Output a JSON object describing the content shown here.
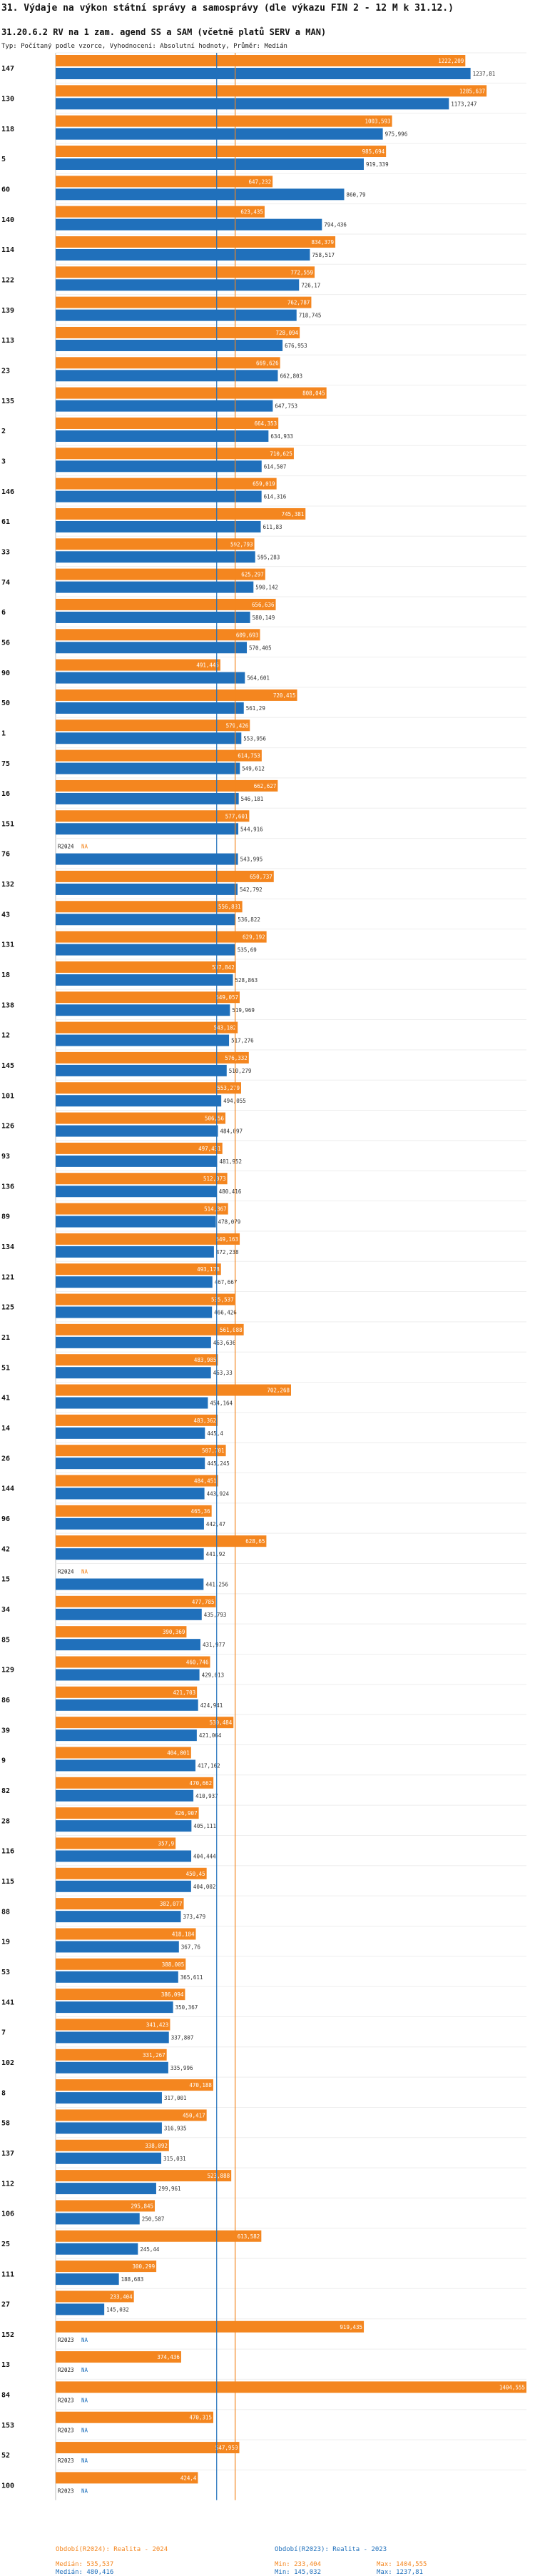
{
  "title": "31. Výdaje na výkon státní správy a samosprávy (dle výkazu FIN 2 - 12 M k 31.12.)",
  "subtitle": "31.20.6.2 RV na 1 zam. agend SS a SAM (včetně platů SERV a MAN)",
  "type_line": "Typ: Počítaný podle vzorce, Vyhodnocení: Absolutní hodnoty, Průměr: Medián",
  "colors": {
    "r2024": "#f4861f",
    "r2023": "#2070bb"
  },
  "legend": {
    "r2024": {
      "label": "Období(R2024): Realita - 2024",
      "median": "Medián: 535,537",
      "min": "Min: 233,404",
      "max": "Max: 1404,555"
    },
    "r2023": {
      "label": "Období(R2023): Realita - 2023",
      "median": "Medián: 480,416",
      "min": "Min: 145,032",
      "max": "Max: 1237,81"
    }
  },
  "chart_data": {
    "type": "bar",
    "orientation": "horizontal",
    "series_names": [
      "R2024",
      "R2023"
    ],
    "xlim": [
      0,
      1404.555
    ],
    "reference_lines": {
      "median_r2024": 535.537,
      "median_r2023": 480.416
    },
    "items": [
      {
        "id": "147",
        "r2024": 1222.209,
        "r2023": 1237.81,
        "l2024": "1222,209",
        "l2023": "1237,81"
      },
      {
        "id": "130",
        "r2024": 1285.637,
        "r2023": 1173.247,
        "l2024": "1285,637",
        "l2023": "1173,247"
      },
      {
        "id": "118",
        "r2024": 1003.593,
        "r2023": 975.996,
        "l2024": "1003,593",
        "l2023": "975,996"
      },
      {
        "id": "5",
        "r2024": 985.694,
        "r2023": 919.339,
        "l2024": "985,694",
        "l2023": "919,339"
      },
      {
        "id": "60",
        "r2024": 647.232,
        "r2023": 860.79,
        "l2024": "647,232",
        "l2023": "860,79"
      },
      {
        "id": "140",
        "r2024": 623.435,
        "r2023": 794.436,
        "l2024": "623,435",
        "l2023": "794,436"
      },
      {
        "id": "114",
        "r2024": 834.379,
        "r2023": 758.517,
        "l2024": "834,379",
        "l2023": "758,517"
      },
      {
        "id": "122",
        "r2024": 772.559,
        "r2023": 726.17,
        "l2024": "772,559",
        "l2023": "726,17"
      },
      {
        "id": "139",
        "r2024": 762.787,
        "r2023": 718.745,
        "l2024": "762,787",
        "l2023": "718,745"
      },
      {
        "id": "113",
        "r2024": 728.094,
        "r2023": 676.953,
        "l2024": "728,094",
        "l2023": "676,953"
      },
      {
        "id": "23",
        "r2024": 669.626,
        "r2023": 662.803,
        "l2024": "669,626",
        "l2023": "662,803"
      },
      {
        "id": "135",
        "r2024": 808.045,
        "r2023": 647.753,
        "l2024": "808,045",
        "l2023": "647,753"
      },
      {
        "id": "2",
        "r2024": 664.353,
        "r2023": 634.933,
        "l2024": "664,353",
        "l2023": "634,933"
      },
      {
        "id": "3",
        "r2024": 710.625,
        "r2023": 614.507,
        "l2024": "710,625",
        "l2023": "614,507"
      },
      {
        "id": "146",
        "r2024": 659.019,
        "r2023": 614.316,
        "l2024": "659,019",
        "l2023": "614,316"
      },
      {
        "id": "61",
        "r2024": 745.381,
        "r2023": 611.83,
        "l2024": "745,381",
        "l2023": "611,83"
      },
      {
        "id": "33",
        "r2024": 592.793,
        "r2023": 595.283,
        "l2024": "592,793",
        "l2023": "595,283"
      },
      {
        "id": "74",
        "r2024": 625.297,
        "r2023": 590.142,
        "l2024": "625,297",
        "l2023": "590,142"
      },
      {
        "id": "6",
        "r2024": 656.636,
        "r2023": 580.149,
        "l2024": "656,636",
        "l2023": "580,149"
      },
      {
        "id": "56",
        "r2024": 609.693,
        "r2023": 570.405,
        "l2024": "609,693",
        "l2023": "570,405"
      },
      {
        "id": "90",
        "r2024": 491.445,
        "r2023": 564.601,
        "l2024": "491,445",
        "l2023": "564,601"
      },
      {
        "id": "50",
        "r2024": 720.415,
        "r2023": 561.29,
        "l2024": "720,415",
        "l2023": "561,29"
      },
      {
        "id": "1",
        "r2024": 579.426,
        "r2023": 553.956,
        "l2024": "579,426",
        "l2023": "553,956"
      },
      {
        "id": "75",
        "r2024": 614.753,
        "r2023": 549.612,
        "l2024": "614,753",
        "l2023": "549,612"
      },
      {
        "id": "16",
        "r2024": 662.627,
        "r2023": 546.181,
        "l2024": "662,627",
        "l2023": "546,181"
      },
      {
        "id": "151",
        "r2024": 577.601,
        "r2023": 544.916,
        "l2024": "577,601",
        "l2023": "544,916"
      },
      {
        "id": "76",
        "r2024": null,
        "r2023": 543.995,
        "l2024": "NA",
        "l2023": "543,995"
      },
      {
        "id": "132",
        "r2024": 650.737,
        "r2023": 542.792,
        "l2024": "650,737",
        "l2023": "542,792"
      },
      {
        "id": "43",
        "r2024": 556.831,
        "r2023": 536.822,
        "l2024": "556,831",
        "l2023": "536,822"
      },
      {
        "id": "131",
        "r2024": 629.192,
        "r2023": 535.69,
        "l2024": "629,192",
        "l2023": "535,69"
      },
      {
        "id": "18",
        "r2024": 537.842,
        "r2023": 528.863,
        "l2024": "537,842",
        "l2023": "528,863"
      },
      {
        "id": "138",
        "r2024": 549.057,
        "r2023": 519.969,
        "l2024": "549,057",
        "l2023": "519,969"
      },
      {
        "id": "12",
        "r2024": 543.102,
        "r2023": 517.276,
        "l2024": "543,102",
        "l2023": "517,276"
      },
      {
        "id": "145",
        "r2024": 576.332,
        "r2023": 510.279,
        "l2024": "576,332",
        "l2023": "510,279"
      },
      {
        "id": "101",
        "r2024": 553.279,
        "r2023": 494.055,
        "l2024": "553,279",
        "l2023": "494,055"
      },
      {
        "id": "126",
        "r2024": 506.56,
        "r2023": 484.097,
        "l2024": "506,56",
        "l2023": "484,097"
      },
      {
        "id": "93",
        "r2024": 497.431,
        "r2023": 481.952,
        "l2024": "497,431",
        "l2023": "481,952"
      },
      {
        "id": "136",
        "r2024": 512.073,
        "r2023": 480.416,
        "l2024": "512,073",
        "l2023": "480,416"
      },
      {
        "id": "89",
        "r2024": 514.367,
        "r2023": 478.079,
        "l2024": "514,367",
        "l2023": "478,079"
      },
      {
        "id": "134",
        "r2024": 549.163,
        "r2023": 472.238,
        "l2024": "549,163",
        "l2023": "472,238"
      },
      {
        "id": "121",
        "r2024": 493.178,
        "r2023": 467.667,
        "l2024": "493,178",
        "l2023": "467,667"
      },
      {
        "id": "125",
        "r2024": 535.537,
        "r2023": 466.426,
        "l2024": "535,537",
        "l2023": "466,426"
      },
      {
        "id": "21",
        "r2024": 561.088,
        "r2023": 463.636,
        "l2024": "561,088",
        "l2023": "463,636"
      },
      {
        "id": "51",
        "r2024": 483.985,
        "r2023": 463.33,
        "l2024": "483,985",
        "l2023": "463,33"
      },
      {
        "id": "41",
        "r2024": 702.268,
        "r2023": 454.164,
        "l2024": "702,268",
        "l2023": "454,164"
      },
      {
        "id": "14",
        "r2024": 483.362,
        "r2023": 445.4,
        "l2024": "483,362",
        "l2023": "445,4"
      },
      {
        "id": "26",
        "r2024": 507.701,
        "r2023": 445.245,
        "l2024": "507,701",
        "l2023": "445,245"
      },
      {
        "id": "144",
        "r2024": 484.451,
        "r2023": 443.924,
        "l2024": "484,451",
        "l2023": "443,924"
      },
      {
        "id": "96",
        "r2024": 465.36,
        "r2023": 442.47,
        "l2024": "465,36",
        "l2023": "442,47"
      },
      {
        "id": "42",
        "r2024": 628.65,
        "r2023": 441.92,
        "l2024": "628,65",
        "l2023": "441,92"
      },
      {
        "id": "15",
        "r2024": null,
        "r2023": 441.256,
        "l2024": "NA",
        "l2023": "441,256"
      },
      {
        "id": "34",
        "r2024": 477.785,
        "r2023": 435.793,
        "l2024": "477,785",
        "l2023": "435,793"
      },
      {
        "id": "85",
        "r2024": 390.369,
        "r2023": 431.977,
        "l2024": "390,369",
        "l2023": "431,977"
      },
      {
        "id": "129",
        "r2024": 460.746,
        "r2023": 429.013,
        "l2024": "460,746",
        "l2023": "429,013"
      },
      {
        "id": "86",
        "r2024": 421.703,
        "r2023": 424.941,
        "l2024": "421,703",
        "l2023": "424,941"
      },
      {
        "id": "39",
        "r2024": 530.484,
        "r2023": 421.064,
        "l2024": "530,484",
        "l2023": "421,064"
      },
      {
        "id": "9",
        "r2024": 404.001,
        "r2023": 417.162,
        "l2024": "404,001",
        "l2023": "417,162"
      },
      {
        "id": "82",
        "r2024": 470.662,
        "r2023": 410.937,
        "l2024": "470,662",
        "l2023": "410,937"
      },
      {
        "id": "28",
        "r2024": 426.907,
        "r2023": 405.111,
        "l2024": "426,907",
        "l2023": "405,111"
      },
      {
        "id": "116",
        "r2024": 357.9,
        "r2023": 404.444,
        "l2024": "357,9",
        "l2023": "404,444"
      },
      {
        "id": "115",
        "r2024": 450.45,
        "r2023": 404.002,
        "l2024": "450,45",
        "l2023": "404,002"
      },
      {
        "id": "88",
        "r2024": 382.077,
        "r2023": 373.479,
        "l2024": "382,077",
        "l2023": "373,479"
      },
      {
        "id": "19",
        "r2024": 418.184,
        "r2023": 367.76,
        "l2024": "418,184",
        "l2023": "367,76"
      },
      {
        "id": "53",
        "r2024": 388.005,
        "r2023": 365.611,
        "l2024": "388,005",
        "l2023": "365,611"
      },
      {
        "id": "141",
        "r2024": 386.094,
        "r2023": 350.367,
        "l2024": "386,094",
        "l2023": "350,367"
      },
      {
        "id": "7",
        "r2024": 341.423,
        "r2023": 337.807,
        "l2024": "341,423",
        "l2023": "337,807"
      },
      {
        "id": "102",
        "r2024": 331.267,
        "r2023": 335.996,
        "l2024": "331,267",
        "l2023": "335,996"
      },
      {
        "id": "8",
        "r2024": 470.188,
        "r2023": 317.001,
        "l2024": "470,188",
        "l2023": "317,001"
      },
      {
        "id": "58",
        "r2024": 450.417,
        "r2023": 316.935,
        "l2024": "450,417",
        "l2023": "316,935"
      },
      {
        "id": "137",
        "r2024": 338.092,
        "r2023": 315.031,
        "l2024": "338,092",
        "l2023": "315,031"
      },
      {
        "id": "112",
        "r2024": 523.888,
        "r2023": 299.961,
        "l2024": "523,888",
        "l2023": "299,961"
      },
      {
        "id": "106",
        "r2024": 295.845,
        "r2023": 250.587,
        "l2024": "295,845",
        "l2023": "250,587"
      },
      {
        "id": "25",
        "r2024": 613.582,
        "r2023": 245.44,
        "l2024": "613,582",
        "l2023": "245,44"
      },
      {
        "id": "111",
        "r2024": 300.299,
        "r2023": 188.683,
        "l2024": "300,299",
        "l2023": "188,683"
      },
      {
        "id": "27",
        "r2024": 233.404,
        "r2023": 145.032,
        "l2024": "233,404",
        "l2023": "145,032"
      },
      {
        "id": "152",
        "r2024": 919.435,
        "r2023": null,
        "l2024": "919,435",
        "l2023": "NA"
      },
      {
        "id": "13",
        "r2024": 374.436,
        "r2023": null,
        "l2024": "374,436",
        "l2023": "NA"
      },
      {
        "id": "84",
        "r2024": 1404.555,
        "r2023": null,
        "l2024": "1404,555",
        "l2023": "NA"
      },
      {
        "id": "153",
        "r2024": 470.315,
        "r2023": null,
        "l2024": "470,315",
        "l2023": "NA"
      },
      {
        "id": "52",
        "r2024": 547.959,
        "r2023": null,
        "l2024": "547,959",
        "l2023": "NA"
      },
      {
        "id": "100",
        "r2024": 424.4,
        "r2023": null,
        "l2024": "424,4",
        "l2023": "NA"
      }
    ]
  }
}
